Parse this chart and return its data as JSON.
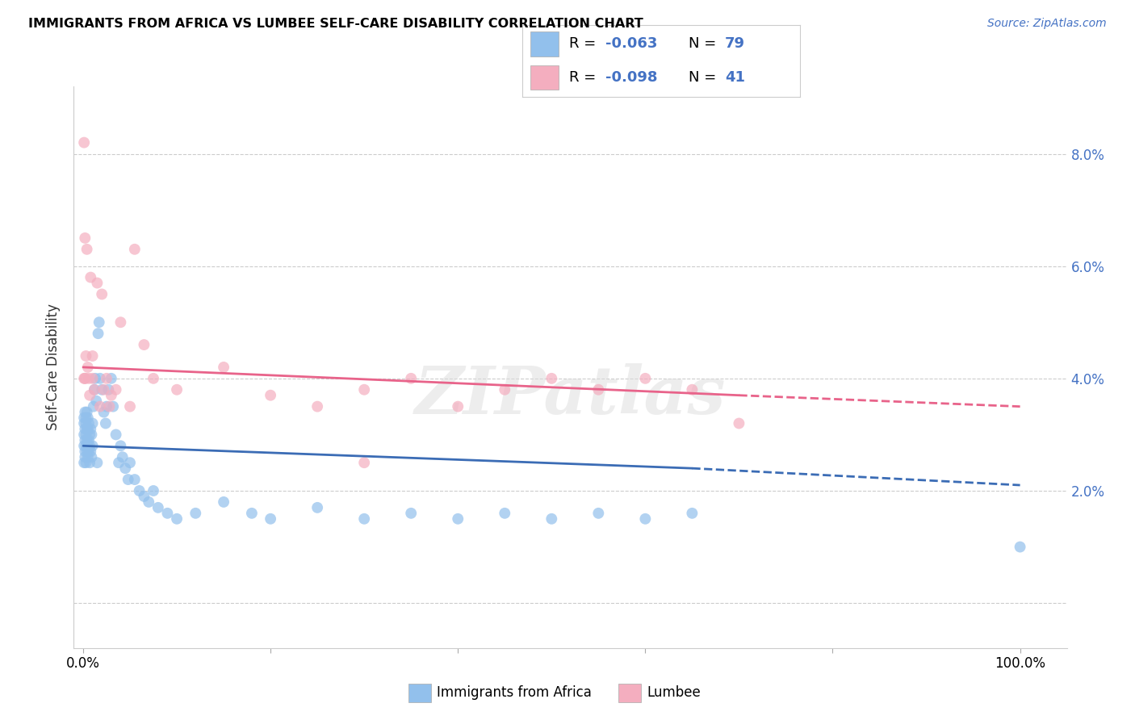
{
  "title": "IMMIGRANTS FROM AFRICA VS LUMBEE SELF-CARE DISABILITY CORRELATION CHART",
  "source": "Source: ZipAtlas.com",
  "ylabel": "Self-Care Disability",
  "y_ticks": [
    0.0,
    0.02,
    0.04,
    0.06,
    0.08
  ],
  "y_tick_labels": [
    "",
    "2.0%",
    "4.0%",
    "6.0%",
    "8.0%"
  ],
  "x_ticks": [
    0.0,
    0.2,
    0.4,
    0.6,
    0.8,
    1.0
  ],
  "x_tick_labels": [
    "0.0%",
    "",
    "",
    "",
    "",
    "100.0%"
  ],
  "xlim": [
    -0.01,
    1.05
  ],
  "ylim": [
    -0.008,
    0.092
  ],
  "color_blue": "#92C0EC",
  "color_pink": "#F4AEBF",
  "color_blue_line": "#3B6CB5",
  "color_pink_line": "#E8638A",
  "watermark": "ZIPatlas",
  "blue_x": [
    0.001,
    0.001,
    0.001,
    0.001,
    0.001,
    0.002,
    0.002,
    0.002,
    0.002,
    0.002,
    0.003,
    0.003,
    0.003,
    0.003,
    0.003,
    0.004,
    0.004,
    0.004,
    0.004,
    0.005,
    0.005,
    0.005,
    0.005,
    0.006,
    0.006,
    0.006,
    0.007,
    0.007,
    0.007,
    0.008,
    0.008,
    0.009,
    0.009,
    0.01,
    0.01,
    0.011,
    0.012,
    0.013,
    0.014,
    0.015,
    0.016,
    0.017,
    0.018,
    0.02,
    0.022,
    0.024,
    0.025,
    0.027,
    0.03,
    0.032,
    0.035,
    0.038,
    0.04,
    0.042,
    0.045,
    0.048,
    0.05,
    0.055,
    0.06,
    0.065,
    0.07,
    0.075,
    0.08,
    0.09,
    0.1,
    0.12,
    0.15,
    0.18,
    0.2,
    0.25,
    0.3,
    0.35,
    0.4,
    0.45,
    0.5,
    0.55,
    0.6,
    0.65,
    1.0
  ],
  "blue_y": [
    0.03,
    0.028,
    0.032,
    0.025,
    0.033,
    0.031,
    0.026,
    0.034,
    0.029,
    0.027,
    0.033,
    0.028,
    0.03,
    0.025,
    0.032,
    0.031,
    0.027,
    0.029,
    0.034,
    0.028,
    0.026,
    0.031,
    0.033,
    0.029,
    0.027,
    0.032,
    0.03,
    0.025,
    0.028,
    0.031,
    0.027,
    0.03,
    0.026,
    0.032,
    0.028,
    0.035,
    0.038,
    0.04,
    0.036,
    0.025,
    0.048,
    0.05,
    0.04,
    0.038,
    0.034,
    0.032,
    0.035,
    0.038,
    0.04,
    0.035,
    0.03,
    0.025,
    0.028,
    0.026,
    0.024,
    0.022,
    0.025,
    0.022,
    0.02,
    0.019,
    0.018,
    0.02,
    0.017,
    0.016,
    0.015,
    0.016,
    0.018,
    0.016,
    0.015,
    0.017,
    0.015,
    0.016,
    0.015,
    0.016,
    0.015,
    0.016,
    0.015,
    0.016,
    0.01
  ],
  "pink_x": [
    0.001,
    0.001,
    0.002,
    0.002,
    0.003,
    0.004,
    0.005,
    0.006,
    0.007,
    0.008,
    0.01,
    0.012,
    0.015,
    0.018,
    0.02,
    0.022,
    0.025,
    0.028,
    0.03,
    0.035,
    0.04,
    0.05,
    0.055,
    0.065,
    0.075,
    0.1,
    0.15,
    0.2,
    0.25,
    0.3,
    0.35,
    0.4,
    0.45,
    0.5,
    0.55,
    0.6,
    0.65,
    0.7,
    0.002,
    0.01,
    0.3
  ],
  "pink_y": [
    0.082,
    0.04,
    0.04,
    0.065,
    0.044,
    0.063,
    0.042,
    0.04,
    0.037,
    0.058,
    0.044,
    0.038,
    0.057,
    0.035,
    0.055,
    0.038,
    0.04,
    0.035,
    0.037,
    0.038,
    0.05,
    0.035,
    0.063,
    0.046,
    0.04,
    0.038,
    0.042,
    0.037,
    0.035,
    0.038,
    0.04,
    0.035,
    0.038,
    0.04,
    0.038,
    0.04,
    0.038,
    0.032,
    0.04,
    0.04,
    0.025
  ],
  "blue_line_x0": 0.0,
  "blue_line_x_solid_end": 0.65,
  "blue_line_x1": 1.0,
  "blue_line_y0": 0.028,
  "blue_line_y_solid_end": 0.024,
  "blue_line_y1": 0.021,
  "pink_line_x0": 0.0,
  "pink_line_x_solid_end": 0.7,
  "pink_line_x1": 1.0,
  "pink_line_y0": 0.042,
  "pink_line_y_solid_end": 0.037,
  "pink_line_y1": 0.035
}
